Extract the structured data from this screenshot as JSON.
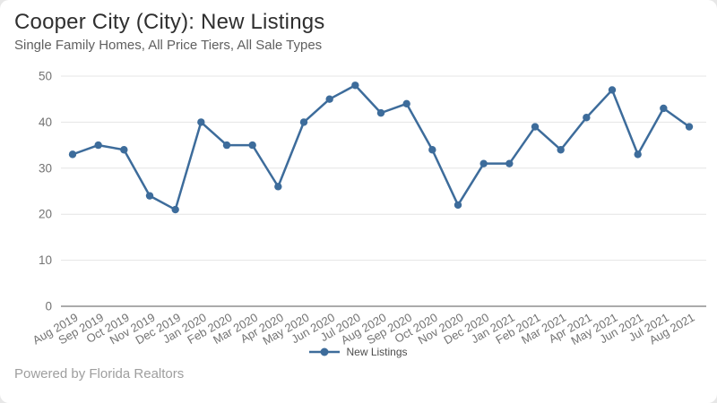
{
  "card": {
    "title": "Cooper City (City): New Listings",
    "subtitle": "Single Family Homes, All Price Tiers, All Sale Types",
    "footer": "Powered by Florida Realtors"
  },
  "chart_data": {
    "type": "line",
    "title": "Cooper City (City): New Listings",
    "subtitle": "Single Family Homes, All Price Tiers, All Sale Types",
    "categories": [
      "Aug 2019",
      "Sep 2019",
      "Oct 2019",
      "Nov 2019",
      "Dec 2019",
      "Jan 2020",
      "Feb 2020",
      "Mar 2020",
      "Apr 2020",
      "May 2020",
      "Jun 2020",
      "Jul 2020",
      "Aug 2020",
      "Sep 2020",
      "Oct 2020",
      "Nov 2020",
      "Dec 2020",
      "Jan 2021",
      "Feb 2021",
      "Mar 2021",
      "Apr 2021",
      "May 2021",
      "Jun 2021",
      "Jul 2021",
      "Aug 2021"
    ],
    "series": [
      {
        "name": "New Listings",
        "values": [
          33,
          35,
          34,
          24,
          21,
          40,
          35,
          35,
          26,
          40,
          45,
          48,
          42,
          44,
          34,
          22,
          31,
          31,
          39,
          34,
          41,
          47,
          33,
          43,
          39
        ]
      }
    ],
    "ylim": [
      0,
      50
    ],
    "yticks": [
      0,
      10,
      20,
      30,
      40,
      50
    ],
    "grid": true,
    "legend_position": "bottom",
    "line_color": "#3d6c9b",
    "grid_color": "#e4e4e4",
    "axis_line_color": "#8f8f8f",
    "tick_label_color": "#737373",
    "x_label_rotation_deg": -30
  }
}
